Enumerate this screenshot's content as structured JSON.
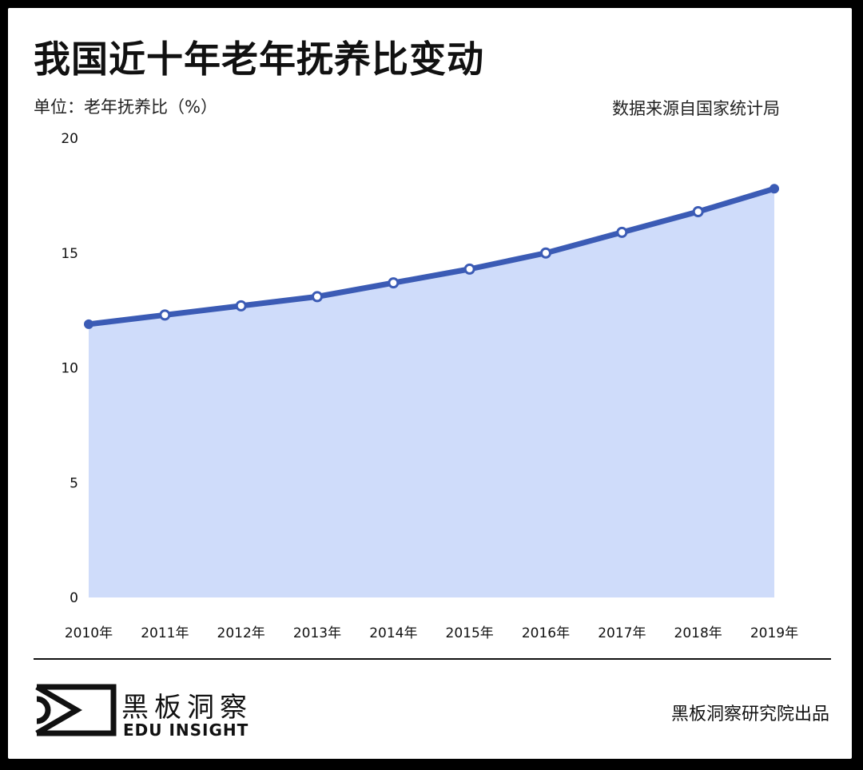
{
  "page": {
    "title": "我国近十年老年抚养比变动",
    "unit_label": "单位：老年抚养比（%）",
    "source": "数据来源自国家统计局"
  },
  "footer": {
    "logo_cn": "黑板洞察",
    "logo_en": "EDU INSIGHT",
    "publisher": "黑板洞察研究院出品"
  },
  "colors": {
    "line": "#3b5bb5",
    "area": "#cfdcfa",
    "marker_fill": "#ffffff"
  },
  "chart_data": {
    "type": "area",
    "title": "我国近十年老年抚养比变动",
    "xlabel": "",
    "ylabel": "",
    "categories": [
      "2010年",
      "2011年",
      "2012年",
      "2013年",
      "2014年",
      "2015年",
      "2016年",
      "2017年",
      "2018年",
      "2019年"
    ],
    "series": [
      {
        "values": [
          11.9,
          12.3,
          12.7,
          13.1,
          13.7,
          14.3,
          15.0,
          15.9,
          16.8,
          17.8
        ]
      }
    ],
    "yticks": [
      "0",
      "5",
      "10",
      "15",
      "20"
    ],
    "ylim": [
      0,
      20
    ],
    "grid": false,
    "legend": "none"
  }
}
